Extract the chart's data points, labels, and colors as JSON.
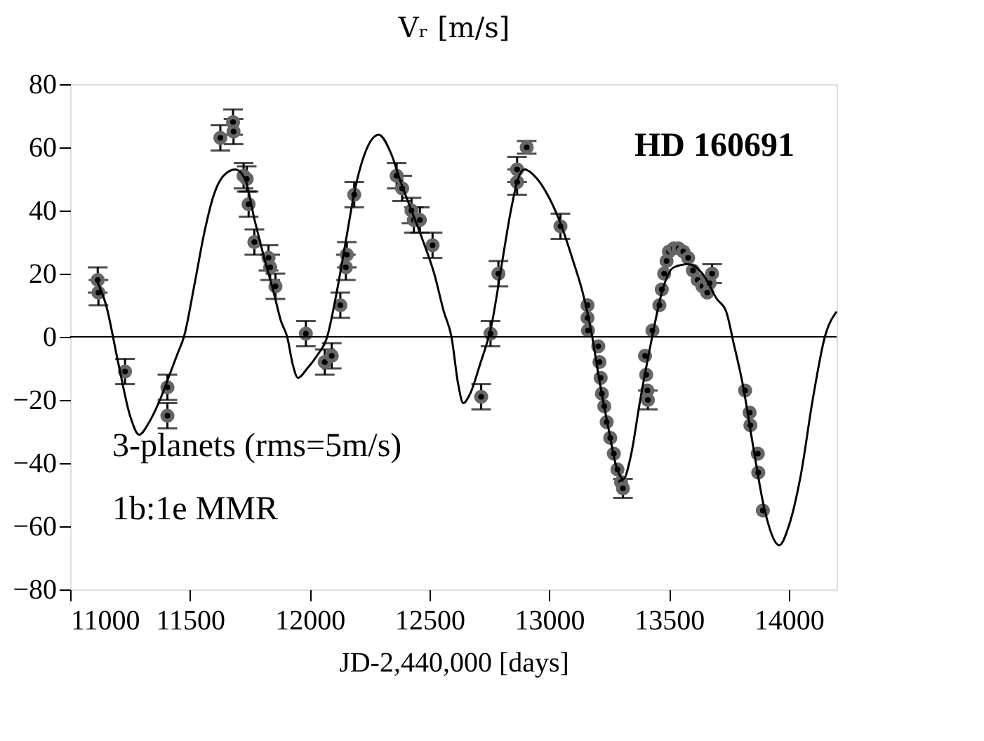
{
  "chart_data": {
    "type": "scatter",
    "ylabel": "Vᵣ [m/s]",
    "xlabel": "JD-2,440,000 [days]",
    "annotations": [
      "HD 160691",
      "3-planets (rms=5m/s)",
      "1b:1e MMR"
    ],
    "xlim": [
      11000,
      14200
    ],
    "xticks": [
      11000,
      11500,
      12000,
      12500,
      13000,
      13500,
      14000
    ],
    "ylim": [
      -80,
      80
    ],
    "yticks": [
      -80,
      -60,
      -40,
      -20,
      0,
      20,
      40,
      60,
      80
    ],
    "grid": false,
    "ref_lines": [
      {
        "axis": "y",
        "value": 0,
        "color": "#000000"
      }
    ],
    "series": [
      {
        "marker": "circle",
        "color": "#000000",
        "x": [
          11115,
          11118,
          11229,
          11406,
          11406,
          11627,
          11680,
          11682,
          11724,
          11737,
          11745,
          11769,
          11828,
          11835,
          11857,
          11984,
          12063,
          12092,
          12128,
          12151,
          12155,
          12186,
          12363,
          12386,
          12425,
          12435,
          12460,
          12513,
          12716,
          12755,
          12788,
          12866,
          12866,
          12906,
          13047,
          13160,
          13160,
          13162,
          13205,
          13210,
          13215,
          13220,
          13230,
          13240,
          13255,
          13270,
          13285,
          13300,
          13308,
          13400,
          13405,
          13410,
          13412,
          13431,
          13460,
          13470,
          13480,
          13490,
          13500,
          13520,
          13540,
          13560,
          13580,
          13600,
          13620,
          13640,
          13660,
          13670,
          13680,
          13818,
          13837,
          13840,
          13871,
          13873,
          13892
        ],
        "values": [
          18,
          14,
          -11,
          -16,
          -25,
          63,
          68,
          65,
          51,
          50,
          42,
          30,
          25,
          22,
          16,
          1,
          -8,
          -6,
          10,
          22,
          26,
          45,
          51,
          47,
          40,
          37,
          37,
          29,
          -19,
          1,
          20,
          53,
          49,
          60,
          35,
          10,
          6,
          2,
          -3,
          -8,
          -13,
          -18,
          -22,
          -27,
          -32,
          -37,
          -42,
          -46,
          -48,
          -6,
          -12,
          -17,
          -20,
          2,
          10,
          15,
          20,
          24,
          27,
          28,
          28,
          27,
          25,
          21,
          18,
          16,
          14,
          17,
          20,
          -17,
          -24,
          -28,
          -37,
          -43,
          -55
        ],
        "errors": [
          4,
          4,
          4,
          4,
          4,
          4,
          4,
          4,
          4,
          4,
          4,
          4,
          4,
          4,
          4,
          4,
          4,
          4,
          4,
          4,
          4,
          4,
          4,
          4,
          4,
          4,
          4,
          4,
          4,
          4,
          4,
          4,
          4,
          2,
          4,
          null,
          null,
          null,
          null,
          null,
          null,
          null,
          null,
          null,
          null,
          null,
          null,
          null,
          3,
          null,
          null,
          null,
          3,
          null,
          null,
          null,
          null,
          null,
          null,
          null,
          null,
          null,
          null,
          null,
          null,
          null,
          null,
          null,
          3,
          null,
          null,
          null,
          null,
          null,
          null
        ]
      },
      {
        "type": "line",
        "color": "#000000",
        "line_style": "solid",
        "marker": "none",
        "x": [
          11110,
          11150,
          11200,
          11250,
          11288,
          11330,
          11380,
          11420,
          11450,
          11475,
          11520,
          11560,
          11600,
          11640,
          11690,
          11730,
          11770,
          11810,
          11850,
          11880,
          11906,
          11930,
          11951,
          11990,
          12030,
          12073,
          12110,
          12150,
          12190,
          12230,
          12288,
          12340,
          12380,
          12420,
          12470,
          12520,
          12560,
          12592,
          12620,
          12641,
          12670,
          12710,
          12760,
          12800,
          12840,
          12870,
          12896,
          12950,
          13000,
          13047,
          13100,
          13140,
          13175,
          13210,
          13250,
          13280,
          13310,
          13340,
          13380,
          13430,
          13470,
          13520,
          13580,
          13640,
          13700,
          13739,
          13770,
          13808,
          13850,
          13900,
          13961,
          14000,
          14050,
          14100,
          14151,
          14200
        ],
        "values": [
          18,
          10,
          -8,
          -25,
          -31,
          -27,
          -19,
          -11,
          -5,
          0,
          17,
          33,
          45,
          51,
          53,
          50,
          37,
          25,
          14,
          5,
          0,
          -9,
          -13,
          -10,
          -6,
          0,
          13,
          30,
          47,
          58,
          64,
          58,
          49,
          41,
          31,
          20,
          8,
          0,
          -15,
          -21,
          -18,
          -9,
          4,
          22,
          40,
          50,
          53,
          50,
          44,
          36,
          24,
          14,
          2,
          -14,
          -30,
          -41,
          -45,
          -38,
          -20,
          0,
          14,
          22,
          23,
          20,
          12,
          8,
          -2,
          -15,
          -34,
          -55,
          -66,
          -60,
          -44,
          -20,
          0,
          8
        ]
      }
    ]
  }
}
